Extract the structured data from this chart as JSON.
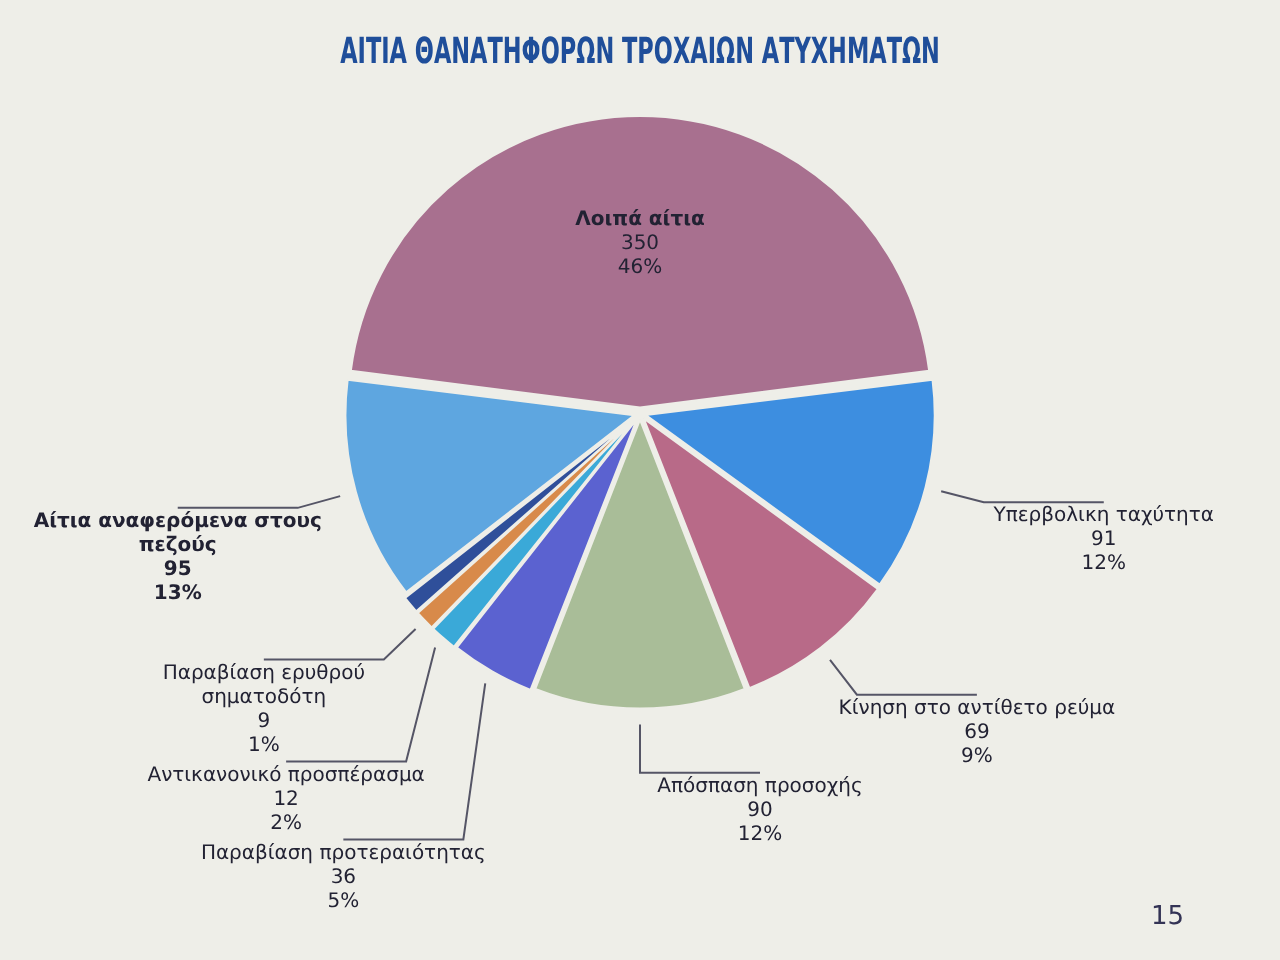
{
  "chart_data": {
    "type": "pie",
    "title": "ΑΙΤΙΑ ΘΑΝΑΤΗΦΟΡΩΝ ΤΡΟΧΑΙΩΝ ΑΤΥΧΗΜΑΤΩΝ",
    "categories": [
      "Λοιπά αίτια",
      "Υπερβολικη ταχύτητα",
      "Κίνηση στο αντίθετο ρεύμα",
      "Απόσπαση προσοχής",
      "Παραβίαση προτεραιότητας",
      "Αντικανονικό προσπέρασμα",
      "Παραβίαση ερυθρού σηματοδότη",
      null,
      "Αίτια αναφερόμενα στους πεζούς"
    ],
    "values": [
      350,
      91,
      69,
      90,
      36,
      12,
      9,
      8,
      95
    ],
    "value_labels": [
      "350\n46%",
      "91\n12%",
      "69\n9%",
      "90\n12%",
      "36\n5%",
      "12\n2%",
      "9\n1%",
      null,
      "95\n13%"
    ],
    "colors": [
      "#a8708f",
      "#3d8ee0",
      "#b86a88",
      "#a9bd98",
      "#5b62d0",
      "#3aa9d8",
      "#d88a4a",
      "#2f4f9a",
      "#5ea6e0"
    ],
    "annotations": [
      "15"
    ],
    "legend": false
  }
}
